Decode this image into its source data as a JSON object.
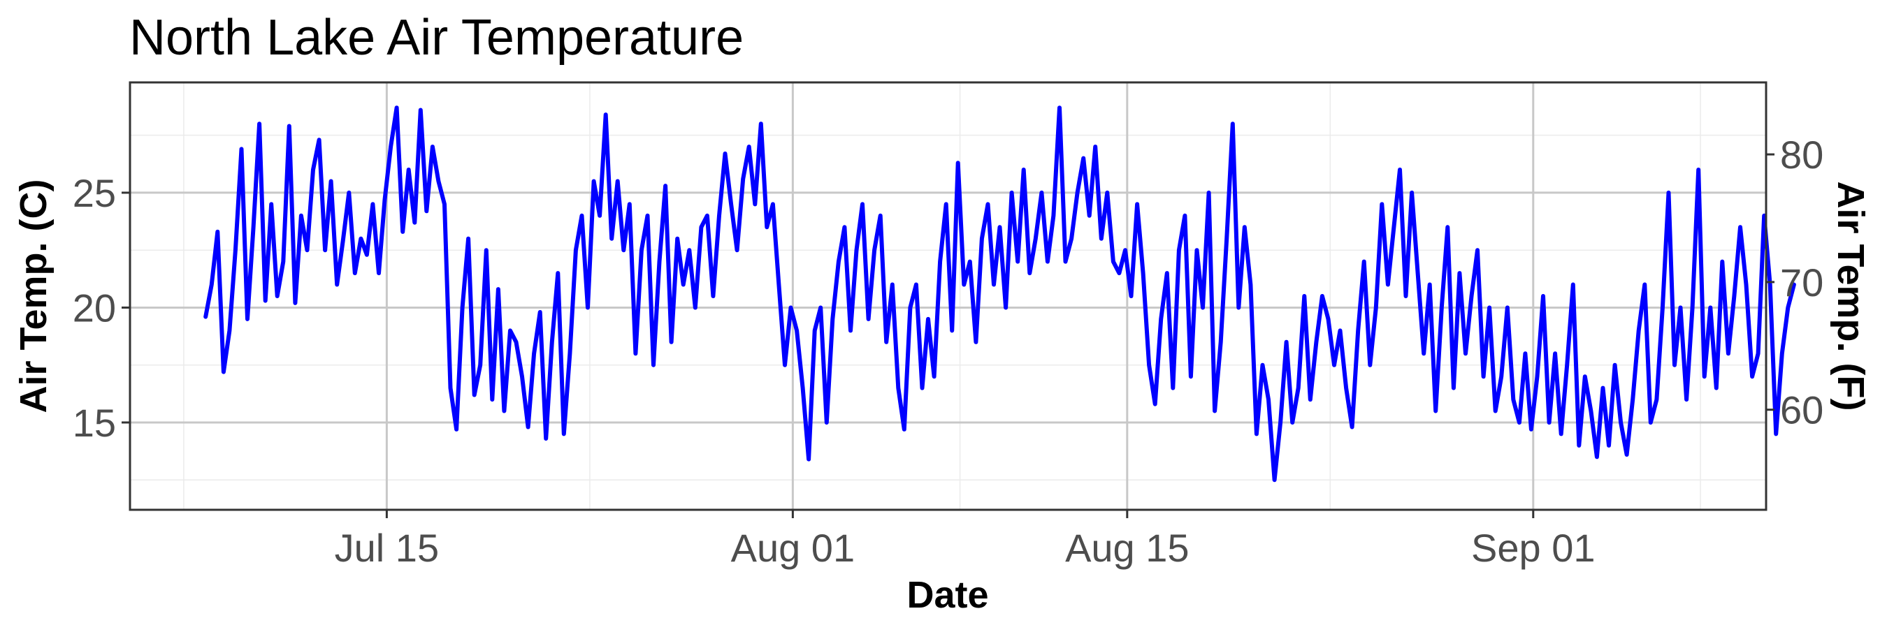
{
  "chart_data": {
    "type": "line",
    "title": "North Lake Air Temperature",
    "xlabel": "Date",
    "ylabel": "Air Temp. (C)",
    "y2label": "Air Temp. (F)",
    "x_range": [
      "2023-07-04T06:00",
      "2023-09-10T18:00"
    ],
    "ylim": [
      11.2,
      29.8
    ],
    "y_ticks": [
      15,
      20,
      25
    ],
    "y2_ticks": [
      60,
      70,
      80
    ],
    "x_ticks": [
      {
        "date": "2023-07-15",
        "label": "Jul 15"
      },
      {
        "date": "2023-08-01",
        "label": "Aug 01"
      },
      {
        "date": "2023-08-15",
        "label": "Aug 15"
      },
      {
        "date": "2023-09-01",
        "label": "Sep 01"
      }
    ],
    "grid": true,
    "line_color": "#0000ff",
    "series": [
      {
        "x_start": "2023-07-07T10:00",
        "x_step_hours": 6,
        "values": [
          19.6,
          21.0,
          23.3,
          17.2,
          19.0,
          22.5,
          26.9,
          19.5,
          23.5,
          28.0,
          20.3,
          24.5,
          20.5,
          22.0,
          27.9,
          20.2,
          24.0,
          22.5,
          26.0,
          27.3,
          22.5,
          25.5,
          21.0,
          22.9,
          25.0,
          21.5,
          23.0,
          22.3,
          24.5,
          21.5,
          24.7,
          27.0,
          28.7,
          23.3,
          26.0,
          23.7,
          28.6,
          24.2,
          27.0,
          25.5,
          24.5,
          16.5,
          14.7,
          20.0,
          23.0,
          16.2,
          17.5,
          22.5,
          16.0,
          20.8,
          15.5,
          19.0,
          18.5,
          17.0,
          14.8,
          18.0,
          19.8,
          14.3,
          18.5,
          21.5,
          14.5,
          18.0,
          22.5,
          24.0,
          20.0,
          25.5,
          24.0,
          28.4,
          23.0,
          25.5,
          22.5,
          24.5,
          18.0,
          22.5,
          24.0,
          17.5,
          22.0,
          25.3,
          18.5,
          23.0,
          21.0,
          22.5,
          20.0,
          23.5,
          24.0,
          20.5,
          24.0,
          26.7,
          24.5,
          22.5,
          25.6,
          27.0,
          24.5,
          28.0,
          23.5,
          24.5,
          21.0,
          17.5,
          20.0,
          19.0,
          16.5,
          13.4,
          19.0,
          20.0,
          15.0,
          19.5,
          22.0,
          23.5,
          19.0,
          22.5,
          24.5,
          19.5,
          22.5,
          24.0,
          18.5,
          21.0,
          16.5,
          14.7,
          20.0,
          21.0,
          16.5,
          19.5,
          17.0,
          22.0,
          24.5,
          19.0,
          26.3,
          21.0,
          22.0,
          18.5,
          23.0,
          24.5,
          21.0,
          23.5,
          20.0,
          25.0,
          22.0,
          26.0,
          21.5,
          23.0,
          25.0,
          22.0,
          24.0,
          28.7,
          22.0,
          23.0,
          25.0,
          26.5,
          24.0,
          27.0,
          23.0,
          25.0,
          22.0,
          21.5,
          22.5,
          20.5,
          24.5,
          21.5,
          17.5,
          15.8,
          19.5,
          21.5,
          16.5,
          22.5,
          24.0,
          17.0,
          22.5,
          20.0,
          25.0,
          15.5,
          18.5,
          23.0,
          28.0,
          20.0,
          23.5,
          21.0,
          14.5,
          17.5,
          16.0,
          12.5,
          15.0,
          18.5,
          15.0,
          16.5,
          20.5,
          16.0,
          18.5,
          20.5,
          19.5,
          17.5,
          19.0,
          16.5,
          14.8,
          19.0,
          22.0,
          17.5,
          20.0,
          24.5,
          21.0,
          23.5,
          26.0,
          20.5,
          25.0,
          21.5,
          18.0,
          21.0,
          15.5,
          20.0,
          23.5,
          16.5,
          21.5,
          18.0,
          20.5,
          22.5,
          17.0,
          20.0,
          15.5,
          17.0,
          20.0,
          16.0,
          15.0,
          18.0,
          14.7,
          17.0,
          20.5,
          15.0,
          18.0,
          14.5,
          17.5,
          21.0,
          14.0,
          17.0,
          15.5,
          13.5,
          16.5,
          14.0,
          17.5,
          15.0,
          13.6,
          16.0,
          19.0,
          21.0,
          15.0,
          16.0,
          20.0,
          25.0,
          17.5,
          20.0,
          16.0,
          20.0,
          26.0,
          17.0,
          20.0,
          16.5,
          22.0,
          18.0,
          20.5,
          23.5,
          21.0,
          17.0,
          18.0,
          24.0,
          21.0,
          14.5,
          18.0,
          20.0,
          21.0
        ]
      }
    ]
  }
}
